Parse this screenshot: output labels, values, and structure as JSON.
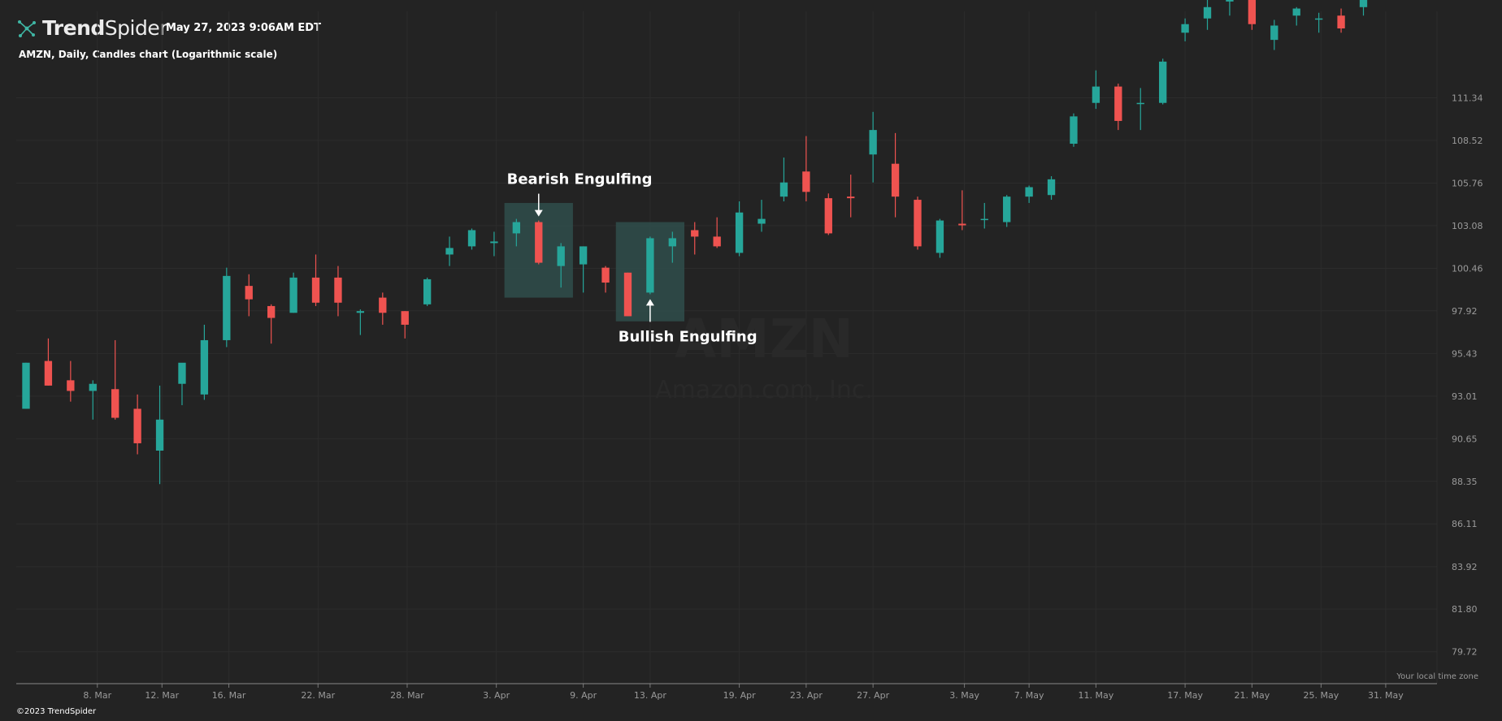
{
  "header": {
    "brand_bold": "Trend",
    "brand_light": "Spider",
    "timestamp": "May 27, 2023 9:06AM EDT",
    "chart_title": "AMZN, Daily, Candles chart (Logarithmic scale)"
  },
  "footer": {
    "copyright": "©2023 TrendSpider",
    "timezone_note": "Your local time zone"
  },
  "watermark": {
    "symbol": "AMZN",
    "company": "Amazon.com, Inc."
  },
  "colors": {
    "background": "#232323",
    "up": "#26a69a",
    "down": "#ef5350",
    "highlight": "#2e4a48",
    "grid": "#2c2c2c",
    "axis_text": "#9a9a9a"
  },
  "chart_data": {
    "type": "candlestick",
    "symbol": "AMZN",
    "interval": "Daily",
    "scale": "log",
    "ylim": [
      78.2,
      117.3
    ],
    "x_range": [
      0,
      63.3
    ],
    "y_ticks": [
      "111.34",
      "108.52",
      "105.76",
      "103.08",
      "100.46",
      "97.92",
      "95.43",
      "93.01",
      "90.65",
      "88.35",
      "86.11",
      "83.92",
      "81.80",
      "79.72"
    ],
    "x_ticks": [
      {
        "label": "8. Mar",
        "pos": 3.2
      },
      {
        "label": "12. Mar",
        "pos": 6.1
      },
      {
        "label": "16. Mar",
        "pos": 9.1
      },
      {
        "label": "22. Mar",
        "pos": 13.1
      },
      {
        "label": "28. Mar",
        "pos": 17.1
      },
      {
        "label": "3. Apr",
        "pos": 21.1
      },
      {
        "label": "9. Apr",
        "pos": 25.0
      },
      {
        "label": "13. Apr",
        "pos": 28.0
      },
      {
        "label": "19. Apr",
        "pos": 32.0
      },
      {
        "label": "23. Apr",
        "pos": 35.0
      },
      {
        "label": "27. Apr",
        "pos": 38.0
      },
      {
        "label": "3. May",
        "pos": 42.1
      },
      {
        "label": "7. May",
        "pos": 45.0
      },
      {
        "label": "11. May",
        "pos": 48.0
      },
      {
        "label": "17. May",
        "pos": 52.0
      },
      {
        "label": "21. May",
        "pos": 55.0
      },
      {
        "label": "25. May",
        "pos": 58.1
      },
      {
        "label": "31. May",
        "pos": 61.0
      }
    ],
    "candles": [
      {
        "date": "Mar 2",
        "o": 92.3,
        "h": 94.9,
        "l": 92.3,
        "c": 94.9
      },
      {
        "date": "Mar 3",
        "o": 95.0,
        "h": 96.3,
        "l": 93.6,
        "c": 93.6
      },
      {
        "date": "Mar 6",
        "o": 93.9,
        "h": 95.0,
        "l": 92.7,
        "c": 93.3
      },
      {
        "date": "Mar 7",
        "o": 93.3,
        "h": 93.9,
        "l": 91.7,
        "c": 93.7
      },
      {
        "date": "Mar 8",
        "o": 93.4,
        "h": 96.2,
        "l": 91.7,
        "c": 91.8
      },
      {
        "date": "Mar 9",
        "o": 92.3,
        "h": 93.1,
        "l": 89.8,
        "c": 90.4
      },
      {
        "date": "Mar 10",
        "o": 90.0,
        "h": 93.6,
        "l": 88.2,
        "c": 91.7
      },
      {
        "date": "Mar 13",
        "o": 93.7,
        "h": 94.8,
        "l": 92.5,
        "c": 94.9
      },
      {
        "date": "Mar 14",
        "o": 93.1,
        "h": 97.1,
        "l": 92.8,
        "c": 96.2
      },
      {
        "date": "Mar 15",
        "o": 96.2,
        "h": 100.5,
        "l": 95.8,
        "c": 100.0
      },
      {
        "date": "Mar 16",
        "o": 99.4,
        "h": 100.1,
        "l": 97.6,
        "c": 98.6
      },
      {
        "date": "Mar 17",
        "o": 98.2,
        "h": 98.3,
        "l": 96.0,
        "c": 97.5
      },
      {
        "date": "Mar 20",
        "o": 97.8,
        "h": 100.2,
        "l": 97.8,
        "c": 99.9
      },
      {
        "date": "Mar 21",
        "o": 99.9,
        "h": 101.3,
        "l": 98.2,
        "c": 98.4
      },
      {
        "date": "Mar 22",
        "o": 99.9,
        "h": 100.6,
        "l": 97.6,
        "c": 98.4
      },
      {
        "date": "Mar 23",
        "o": 97.8,
        "h": 98.0,
        "l": 96.5,
        "c": 97.9
      },
      {
        "date": "Mar 24",
        "o": 98.7,
        "h": 99.0,
        "l": 97.1,
        "c": 97.8
      },
      {
        "date": "Mar 27",
        "o": 97.9,
        "h": 97.9,
        "l": 96.3,
        "c": 97.1
      },
      {
        "date": "Mar 28",
        "o": 98.3,
        "h": 99.9,
        "l": 98.2,
        "c": 99.8
      },
      {
        "date": "Mar 29",
        "o": 101.3,
        "h": 102.4,
        "l": 100.6,
        "c": 101.7
      },
      {
        "date": "Mar 30",
        "o": 101.8,
        "h": 102.9,
        "l": 101.6,
        "c": 102.8
      },
      {
        "date": "Mar 31",
        "o": 102.0,
        "h": 102.7,
        "l": 101.2,
        "c": 102.1
      },
      {
        "date": "Apr 3",
        "o": 102.6,
        "h": 103.5,
        "l": 101.8,
        "c": 103.3
      },
      {
        "date": "Apr 4",
        "o": 103.3,
        "h": 103.4,
        "l": 100.7,
        "c": 100.8
      },
      {
        "date": "Apr 5",
        "o": 100.6,
        "h": 102.0,
        "l": 99.3,
        "c": 101.8
      },
      {
        "date": "Apr 6",
        "o": 100.7,
        "h": 101.8,
        "l": 99.0,
        "c": 101.8
      },
      {
        "date": "Apr 10",
        "o": 100.5,
        "h": 100.6,
        "l": 99.0,
        "c": 99.6
      },
      {
        "date": "Apr 11",
        "o": 100.2,
        "h": 100.2,
        "l": 97.6,
        "c": 97.6
      },
      {
        "date": "Apr 12",
        "o": 99.0,
        "h": 102.4,
        "l": 98.9,
        "c": 102.3
      },
      {
        "date": "Apr 13",
        "o": 101.8,
        "h": 102.7,
        "l": 100.8,
        "c": 102.3
      },
      {
        "date": "Apr 14",
        "o": 102.8,
        "h": 103.3,
        "l": 101.3,
        "c": 102.4
      },
      {
        "date": "Apr 17",
        "o": 102.4,
        "h": 103.6,
        "l": 101.7,
        "c": 101.8
      },
      {
        "date": "Apr 18",
        "o": 101.4,
        "h": 104.6,
        "l": 101.2,
        "c": 103.9
      },
      {
        "date": "Apr 19",
        "o": 103.2,
        "h": 104.7,
        "l": 102.7,
        "c": 103.5
      },
      {
        "date": "Apr 20",
        "o": 104.9,
        "h": 107.4,
        "l": 104.6,
        "c": 105.8
      },
      {
        "date": "Apr 21",
        "o": 106.5,
        "h": 108.8,
        "l": 104.6,
        "c": 105.2
      },
      {
        "date": "Apr 24",
        "o": 104.8,
        "h": 105.1,
        "l": 102.5,
        "c": 102.6
      },
      {
        "date": "Apr 25",
        "o": 104.9,
        "h": 106.3,
        "l": 103.6,
        "c": 104.8
      },
      {
        "date": "Apr 26",
        "o": 107.6,
        "h": 110.4,
        "l": 105.8,
        "c": 109.2
      },
      {
        "date": "Apr 27",
        "o": 107.0,
        "h": 109.0,
        "l": 103.6,
        "c": 104.9
      },
      {
        "date": "Apr 28",
        "o": 104.7,
        "h": 104.9,
        "l": 101.6,
        "c": 101.8
      },
      {
        "date": "May 1",
        "o": 101.4,
        "h": 103.5,
        "l": 101.1,
        "c": 103.4
      },
      {
        "date": "May 2",
        "o": 103.2,
        "h": 105.3,
        "l": 102.8,
        "c": 103.1
      },
      {
        "date": "May 3",
        "o": 103.5,
        "h": 104.5,
        "l": 102.9,
        "c": 103.5
      },
      {
        "date": "May 4",
        "o": 103.3,
        "h": 105.0,
        "l": 103.0,
        "c": 104.9
      },
      {
        "date": "May 5",
        "o": 104.9,
        "h": 105.6,
        "l": 104.5,
        "c": 105.5
      },
      {
        "date": "May 8",
        "o": 105.0,
        "h": 106.2,
        "l": 104.7,
        "c": 106.0
      },
      {
        "date": "May 9",
        "o": 108.3,
        "h": 110.3,
        "l": 108.1,
        "c": 110.1
      },
      {
        "date": "May 10",
        "o": 111.0,
        "h": 113.2,
        "l": 110.6,
        "c": 112.1
      },
      {
        "date": "May 11",
        "o": 112.1,
        "h": 112.3,
        "l": 109.2,
        "c": 109.8
      },
      {
        "date": "May 12",
        "o": 111.0,
        "h": 112.0,
        "l": 109.2,
        "c": 111.0
      },
      {
        "date": "May 15",
        "o": 111.0,
        "h": 114.0,
        "l": 110.9,
        "c": 113.8
      },
      {
        "date": "May 16",
        "o": 115.8,
        "h": 116.8,
        "l": 115.2,
        "c": 116.4
      },
      {
        "date": "May 17",
        "o": 116.8,
        "h": 118.2,
        "l": 116.0,
        "c": 117.6
      },
      {
        "date": "May 18",
        "o": 118.0,
        "h": 119.0,
        "l": 117.0,
        "c": 118.5
      },
      {
        "date": "May 19",
        "o": 118.2,
        "h": 118.3,
        "l": 116.0,
        "c": 116.4
      },
      {
        "date": "May 22",
        "o": 115.3,
        "h": 116.7,
        "l": 114.6,
        "c": 116.3
      },
      {
        "date": "May 23",
        "o": 117.0,
        "h": 117.6,
        "l": 116.3,
        "c": 117.5
      },
      {
        "date": "May 24",
        "o": 116.8,
        "h": 117.2,
        "l": 115.8,
        "c": 116.8
      },
      {
        "date": "May 25",
        "o": 117.0,
        "h": 117.5,
        "l": 115.8,
        "c": 116.1
      },
      {
        "date": "May 26",
        "o": 117.6,
        "h": 118.6,
        "l": 117.0,
        "c": 118.2
      }
    ],
    "annotations": [
      {
        "label": "Bearish Engulfing",
        "type": "bearish",
        "from_candle": 22,
        "to_candle": 24,
        "ymin": 98.7,
        "ymax": 104.5
      },
      {
        "label": "Bullish Engulfing",
        "type": "bullish",
        "from_candle": 27,
        "to_candle": 29,
        "ymin": 97.3,
        "ymax": 103.3
      }
    ]
  }
}
